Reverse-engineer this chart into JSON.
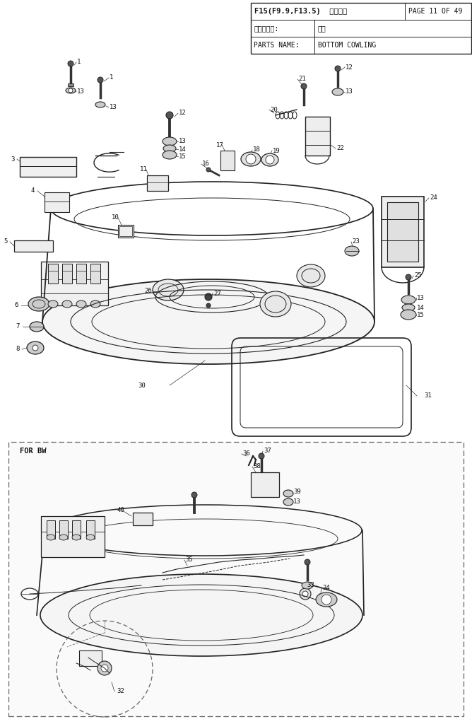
{
  "title1": "F15(F9.9,F13.5)  零件手册",
  "page": "PAGE 11 OF 49",
  "row2_label": "零部件名称:",
  "row2_value": "底罩",
  "row3_label": "PARTS NAME:",
  "row3_value": "BOTTOM COWLING",
  "for_bw": "FOR BW",
  "bg": "#ffffff",
  "lc": "#222222",
  "gray": "#aaaaaa",
  "dgray": "#555555",
  "lgray": "#dddddd",
  "fig_w": 6.68,
  "fig_h": 10.24,
  "dpi": 100
}
